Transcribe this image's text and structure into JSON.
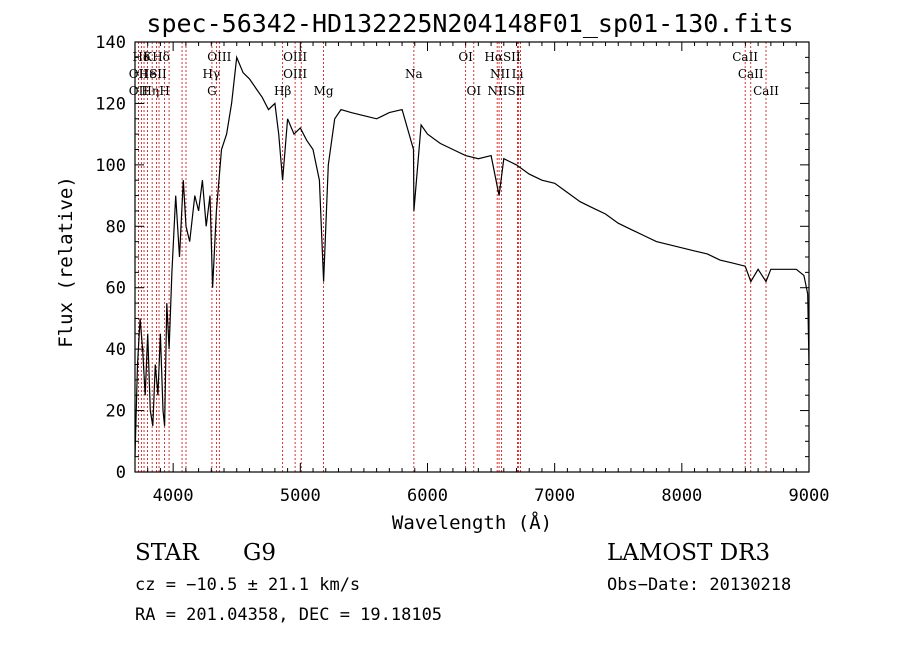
{
  "chart_data": {
    "type": "line",
    "title": "spec-56342-HD132225N204148F01_sp01-130.fits",
    "xlabel": "Wavelength (Å)",
    "ylabel": "Flux (relative)",
    "xlim": [
      3700,
      9000
    ],
    "ylim": [
      0,
      140
    ],
    "x_ticks": [
      "4000",
      "5000",
      "6000",
      "7000",
      "8000",
      "9000"
    ],
    "y_ticks": [
      "0",
      "20",
      "40",
      "60",
      "80",
      "100",
      "120",
      "140"
    ],
    "grid": false,
    "legend": "none",
    "series": [
      {
        "x": [
          3700,
          3720,
          3740,
          3760,
          3780,
          3800,
          3820,
          3840,
          3860,
          3880,
          3900,
          3920,
          3933,
          3950,
          3968,
          3990,
          4020,
          4050,
          4080,
          4101,
          4130,
          4170,
          4200,
          4230,
          4260,
          4290,
          4310,
          4340,
          4380,
          4420,
          4460,
          4500,
          4550,
          4600,
          4650,
          4700,
          4750,
          4800,
          4830,
          4861,
          4900,
          4950,
          5000,
          5050,
          5100,
          5150,
          5183,
          5220,
          5270,
          5320,
          5400,
          5500,
          5600,
          5700,
          5800,
          5890,
          5893,
          5950,
          6000,
          6100,
          6200,
          6300,
          6400,
          6500,
          6563,
          6600,
          6700,
          6800,
          6900,
          7000,
          7100,
          7200,
          7300,
          7400,
          7500,
          7600,
          7700,
          7800,
          7900,
          8000,
          8100,
          8200,
          8300,
          8400,
          8498,
          8542,
          8600,
          8662,
          8700,
          8800,
          8900,
          8960,
          8990,
          9000
        ],
        "y": [
          5,
          35,
          50,
          40,
          25,
          45,
          20,
          15,
          35,
          25,
          45,
          20,
          15,
          55,
          40,
          65,
          90,
          70,
          95,
          80,
          75,
          90,
          85,
          95,
          80,
          90,
          60,
          85,
          105,
          110,
          120,
          135,
          130,
          128,
          125,
          122,
          118,
          120,
          110,
          95,
          115,
          110,
          112,
          108,
          105,
          95,
          62,
          100,
          115,
          118,
          117,
          116,
          115,
          117,
          118,
          105,
          85,
          113,
          110,
          107,
          105,
          103,
          102,
          103,
          90,
          102,
          100,
          97,
          95,
          94,
          91,
          88,
          86,
          84,
          81,
          79,
          77,
          75,
          74,
          73,
          72,
          71,
          69,
          68,
          67,
          62,
          66,
          62,
          66,
          66,
          66,
          64,
          58,
          35
        ]
      }
    ],
    "line_labels": [
      {
        "name": "Hδ",
        "x": 3750,
        "row": 1
      },
      {
        "name": "K",
        "x": 3800,
        "row": 1
      },
      {
        "name": "Hδ",
        "x": 3905,
        "row": 1
      },
      {
        "name": "OIII",
        "x": 4363,
        "row": 1
      },
      {
        "name": "OIII",
        "x": 4959,
        "row": 1
      },
      {
        "name": "OI",
        "x": 6300,
        "row": 1
      },
      {
        "name": "HαSII",
        "x": 6590,
        "row": 1
      },
      {
        "name": "CaII",
        "x": 8498,
        "row": 1
      },
      {
        "name": "OII",
        "x": 3727,
        "row": 2
      },
      {
        "name": "He",
        "x": 3800,
        "row": 2
      },
      {
        "name": "SII",
        "x": 3880,
        "row": 2
      },
      {
        "name": "Hγ",
        "x": 4300,
        "row": 2
      },
      {
        "name": "OIII",
        "x": 4959,
        "row": 2
      },
      {
        "name": "Na",
        "x": 5893,
        "row": 2
      },
      {
        "name": "NII",
        "x": 6570,
        "row": 2
      },
      {
        "name": "Li",
        "x": 6708,
        "row": 2
      },
      {
        "name": "CaII",
        "x": 8542,
        "row": 2
      },
      {
        "name": "OII",
        "x": 3727,
        "row": 3
      },
      {
        "name": "Hη",
        "x": 3820,
        "row": 3
      },
      {
        "name": "H",
        "x": 3933,
        "row": 3
      },
      {
        "name": "G",
        "x": 4305,
        "row": 3
      },
      {
        "name": "Hβ",
        "x": 4861,
        "row": 3
      },
      {
        "name": "Mg",
        "x": 5183,
        "row": 3
      },
      {
        "name": "OI",
        "x": 6364,
        "row": 3
      },
      {
        "name": "NIISII",
        "x": 6620,
        "row": 3
      },
      {
        "name": "CaII",
        "x": 8662,
        "row": 3
      }
    ],
    "line_markers": [
      3727,
      3750,
      3771,
      3798,
      3835,
      3869,
      3889,
      3933,
      3968,
      4070,
      4101,
      4305,
      4340,
      4363,
      4861,
      4959,
      5007,
      5183,
      5893,
      6300,
      6364,
      6548,
      6563,
      6583,
      6708,
      6717,
      6731,
      8498,
      8542,
      8662
    ],
    "line_marker_color": "#cc0000",
    "line_color": "#000000"
  },
  "info": {
    "object_type": "STAR",
    "subclass": "G9",
    "survey": "LAMOST DR3",
    "cz": "cz = −10.5 ± 21.1 km/s",
    "obs_date": "Obs−Date: 20130218",
    "coords": "RA = 201.04358, DEC =  19.18105"
  }
}
